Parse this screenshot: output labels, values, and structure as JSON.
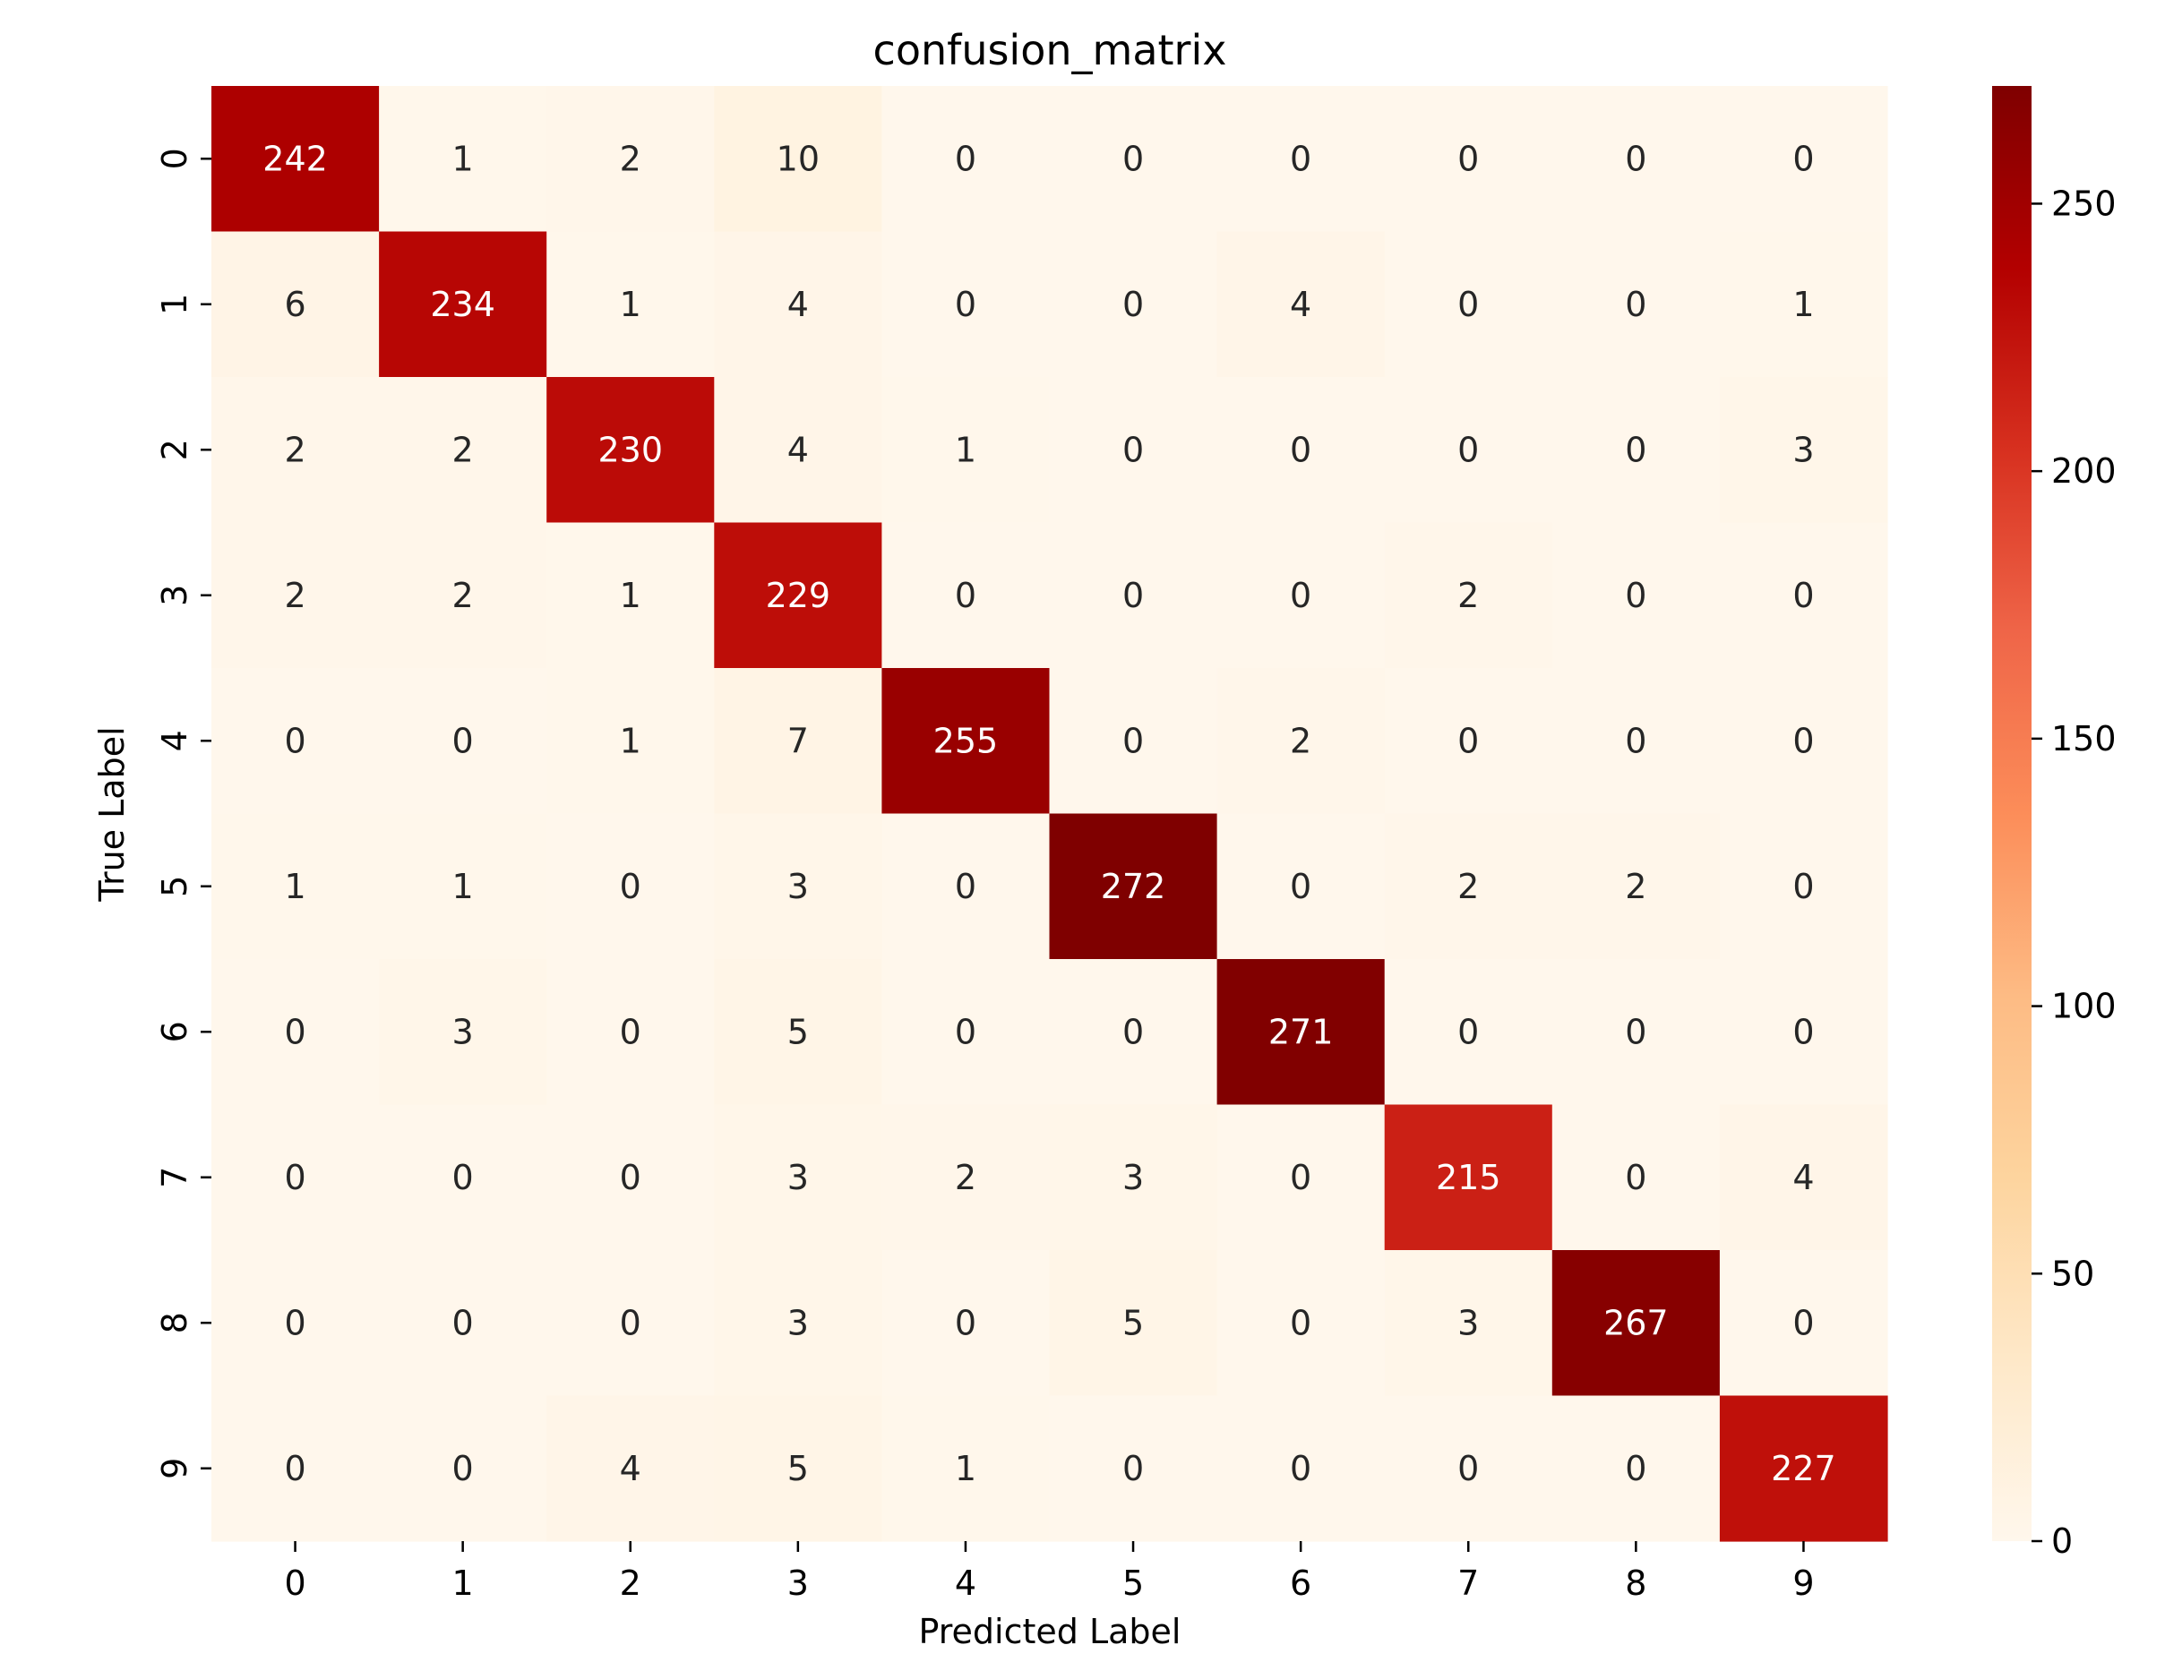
{
  "chart_data": {
    "type": "heatmap",
    "title": "confusion_matrix",
    "xlabel": "Predicted Label",
    "ylabel": "True Label",
    "x_categories": [
      "0",
      "1",
      "2",
      "3",
      "4",
      "5",
      "6",
      "7",
      "8",
      "9"
    ],
    "y_categories": [
      "0",
      "1",
      "2",
      "3",
      "4",
      "5",
      "6",
      "7",
      "8",
      "9"
    ],
    "matrix": [
      [
        242,
        1,
        2,
        10,
        0,
        0,
        0,
        0,
        0,
        0
      ],
      [
        6,
        234,
        1,
        4,
        0,
        0,
        4,
        0,
        0,
        1
      ],
      [
        2,
        2,
        230,
        4,
        1,
        0,
        0,
        0,
        0,
        3
      ],
      [
        2,
        2,
        1,
        229,
        0,
        0,
        0,
        2,
        0,
        0
      ],
      [
        0,
        0,
        1,
        7,
        255,
        0,
        2,
        0,
        0,
        0
      ],
      [
        1,
        1,
        0,
        3,
        0,
        272,
        0,
        2,
        2,
        0
      ],
      [
        0,
        3,
        0,
        5,
        0,
        0,
        271,
        0,
        0,
        0
      ],
      [
        0,
        0,
        0,
        3,
        2,
        3,
        0,
        215,
        0,
        4
      ],
      [
        0,
        0,
        0,
        3,
        0,
        5,
        0,
        3,
        267,
        0
      ],
      [
        0,
        0,
        4,
        5,
        1,
        0,
        0,
        0,
        0,
        227
      ]
    ],
    "colormap": "OrRd",
    "colorbar": {
      "range": [
        0,
        272
      ],
      "ticks": [
        "0",
        "50",
        "100",
        "150",
        "200",
        "250"
      ],
      "tick_values": [
        0,
        50,
        100,
        150,
        200,
        250
      ],
      "placement": "right"
    },
    "grid": false
  }
}
